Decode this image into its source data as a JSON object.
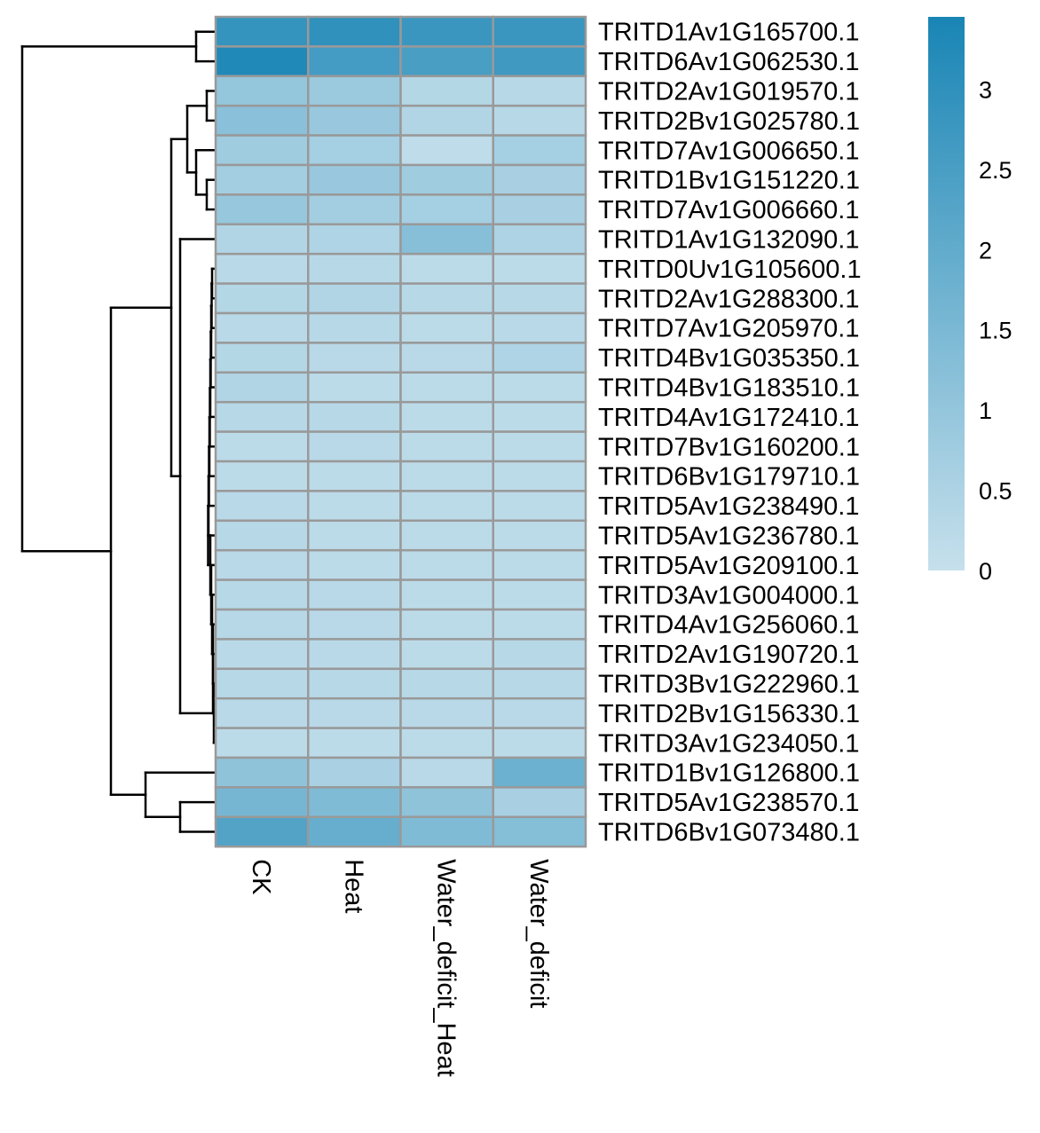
{
  "chart_data": {
    "type": "heatmap",
    "title": "",
    "columns": [
      "CK",
      "Heat",
      "Water_deficit_Heat",
      "Water_deficit"
    ],
    "rows": [
      "TRITD1Av1G165700.1",
      "TRITD6Av1G062530.1",
      "TRITD2Av1G019570.1",
      "TRITD2Bv1G025780.1",
      "TRITD7Av1G006650.1",
      "TRITD1Bv1G151220.1",
      "TRITD7Av1G006660.1",
      "TRITD1Av1G132090.1",
      "TRITD0Uv1G105600.1",
      "TRITD2Av1G288300.1",
      "TRITD7Av1G205970.1",
      "TRITD4Bv1G035350.1",
      "TRITD4Bv1G183510.1",
      "TRITD4Av1G172410.1",
      "TRITD7Bv1G160200.1",
      "TRITD6Bv1G179710.1",
      "TRITD5Av1G238490.1",
      "TRITD5Av1G236780.1",
      "TRITD5Av1G209100.1",
      "TRITD3Av1G004000.1",
      "TRITD4Av1G256060.1",
      "TRITD2Av1G190720.1",
      "TRITD3Bv1G222960.1",
      "TRITD2Bv1G156330.1",
      "TRITD3Av1G234050.1",
      "TRITD1Bv1G126800.1",
      "TRITD5Av1G238570.1",
      "TRITD6Bv1G073480.1"
    ],
    "values": [
      [
        2.9,
        3.0,
        2.8,
        2.8
      ],
      [
        3.3,
        2.6,
        2.5,
        2.7
      ],
      [
        1.0,
        0.85,
        0.35,
        0.3
      ],
      [
        1.2,
        0.9,
        0.4,
        0.3
      ],
      [
        0.75,
        0.65,
        0.15,
        0.65
      ],
      [
        0.7,
        0.9,
        0.75,
        0.6
      ],
      [
        0.95,
        0.7,
        0.65,
        0.6
      ],
      [
        0.4,
        0.45,
        1.25,
        0.5
      ],
      [
        0.25,
        0.3,
        0.2,
        0.2
      ],
      [
        0.35,
        0.4,
        0.3,
        0.3
      ],
      [
        0.25,
        0.3,
        0.2,
        0.25
      ],
      [
        0.35,
        0.25,
        0.25,
        0.45
      ],
      [
        0.4,
        0.2,
        0.2,
        0.2
      ],
      [
        0.3,
        0.3,
        0.2,
        0.2
      ],
      [
        0.2,
        0.25,
        0.2,
        0.2
      ],
      [
        0.2,
        0.2,
        0.2,
        0.2
      ],
      [
        0.25,
        0.2,
        0.2,
        0.2
      ],
      [
        0.3,
        0.2,
        0.2,
        0.2
      ],
      [
        0.25,
        0.2,
        0.2,
        0.2
      ],
      [
        0.3,
        0.25,
        0.2,
        0.2
      ],
      [
        0.3,
        0.25,
        0.2,
        0.2
      ],
      [
        0.25,
        0.25,
        0.2,
        0.3
      ],
      [
        0.3,
        0.3,
        0.3,
        0.3
      ],
      [
        0.25,
        0.25,
        0.25,
        0.25
      ],
      [
        0.2,
        0.2,
        0.2,
        0.2
      ],
      [
        1.1,
        0.55,
        0.25,
        1.8
      ],
      [
        1.6,
        1.4,
        1.1,
        0.6
      ],
      [
        2.3,
        1.9,
        1.4,
        1.3
      ]
    ],
    "color_scale": {
      "min": 0,
      "max": 3.45,
      "low_color": "#c6e0ec",
      "high_color": "#1985b5",
      "ticks": [
        "0",
        "0.5",
        "1",
        "1.5",
        "2",
        "2.5",
        "3"
      ],
      "tick_values": [
        0,
        0.5,
        1,
        1.5,
        2,
        2.5,
        3
      ]
    },
    "cell_border_color": "#999999",
    "row_dendrogram": true,
    "legend": "right"
  }
}
